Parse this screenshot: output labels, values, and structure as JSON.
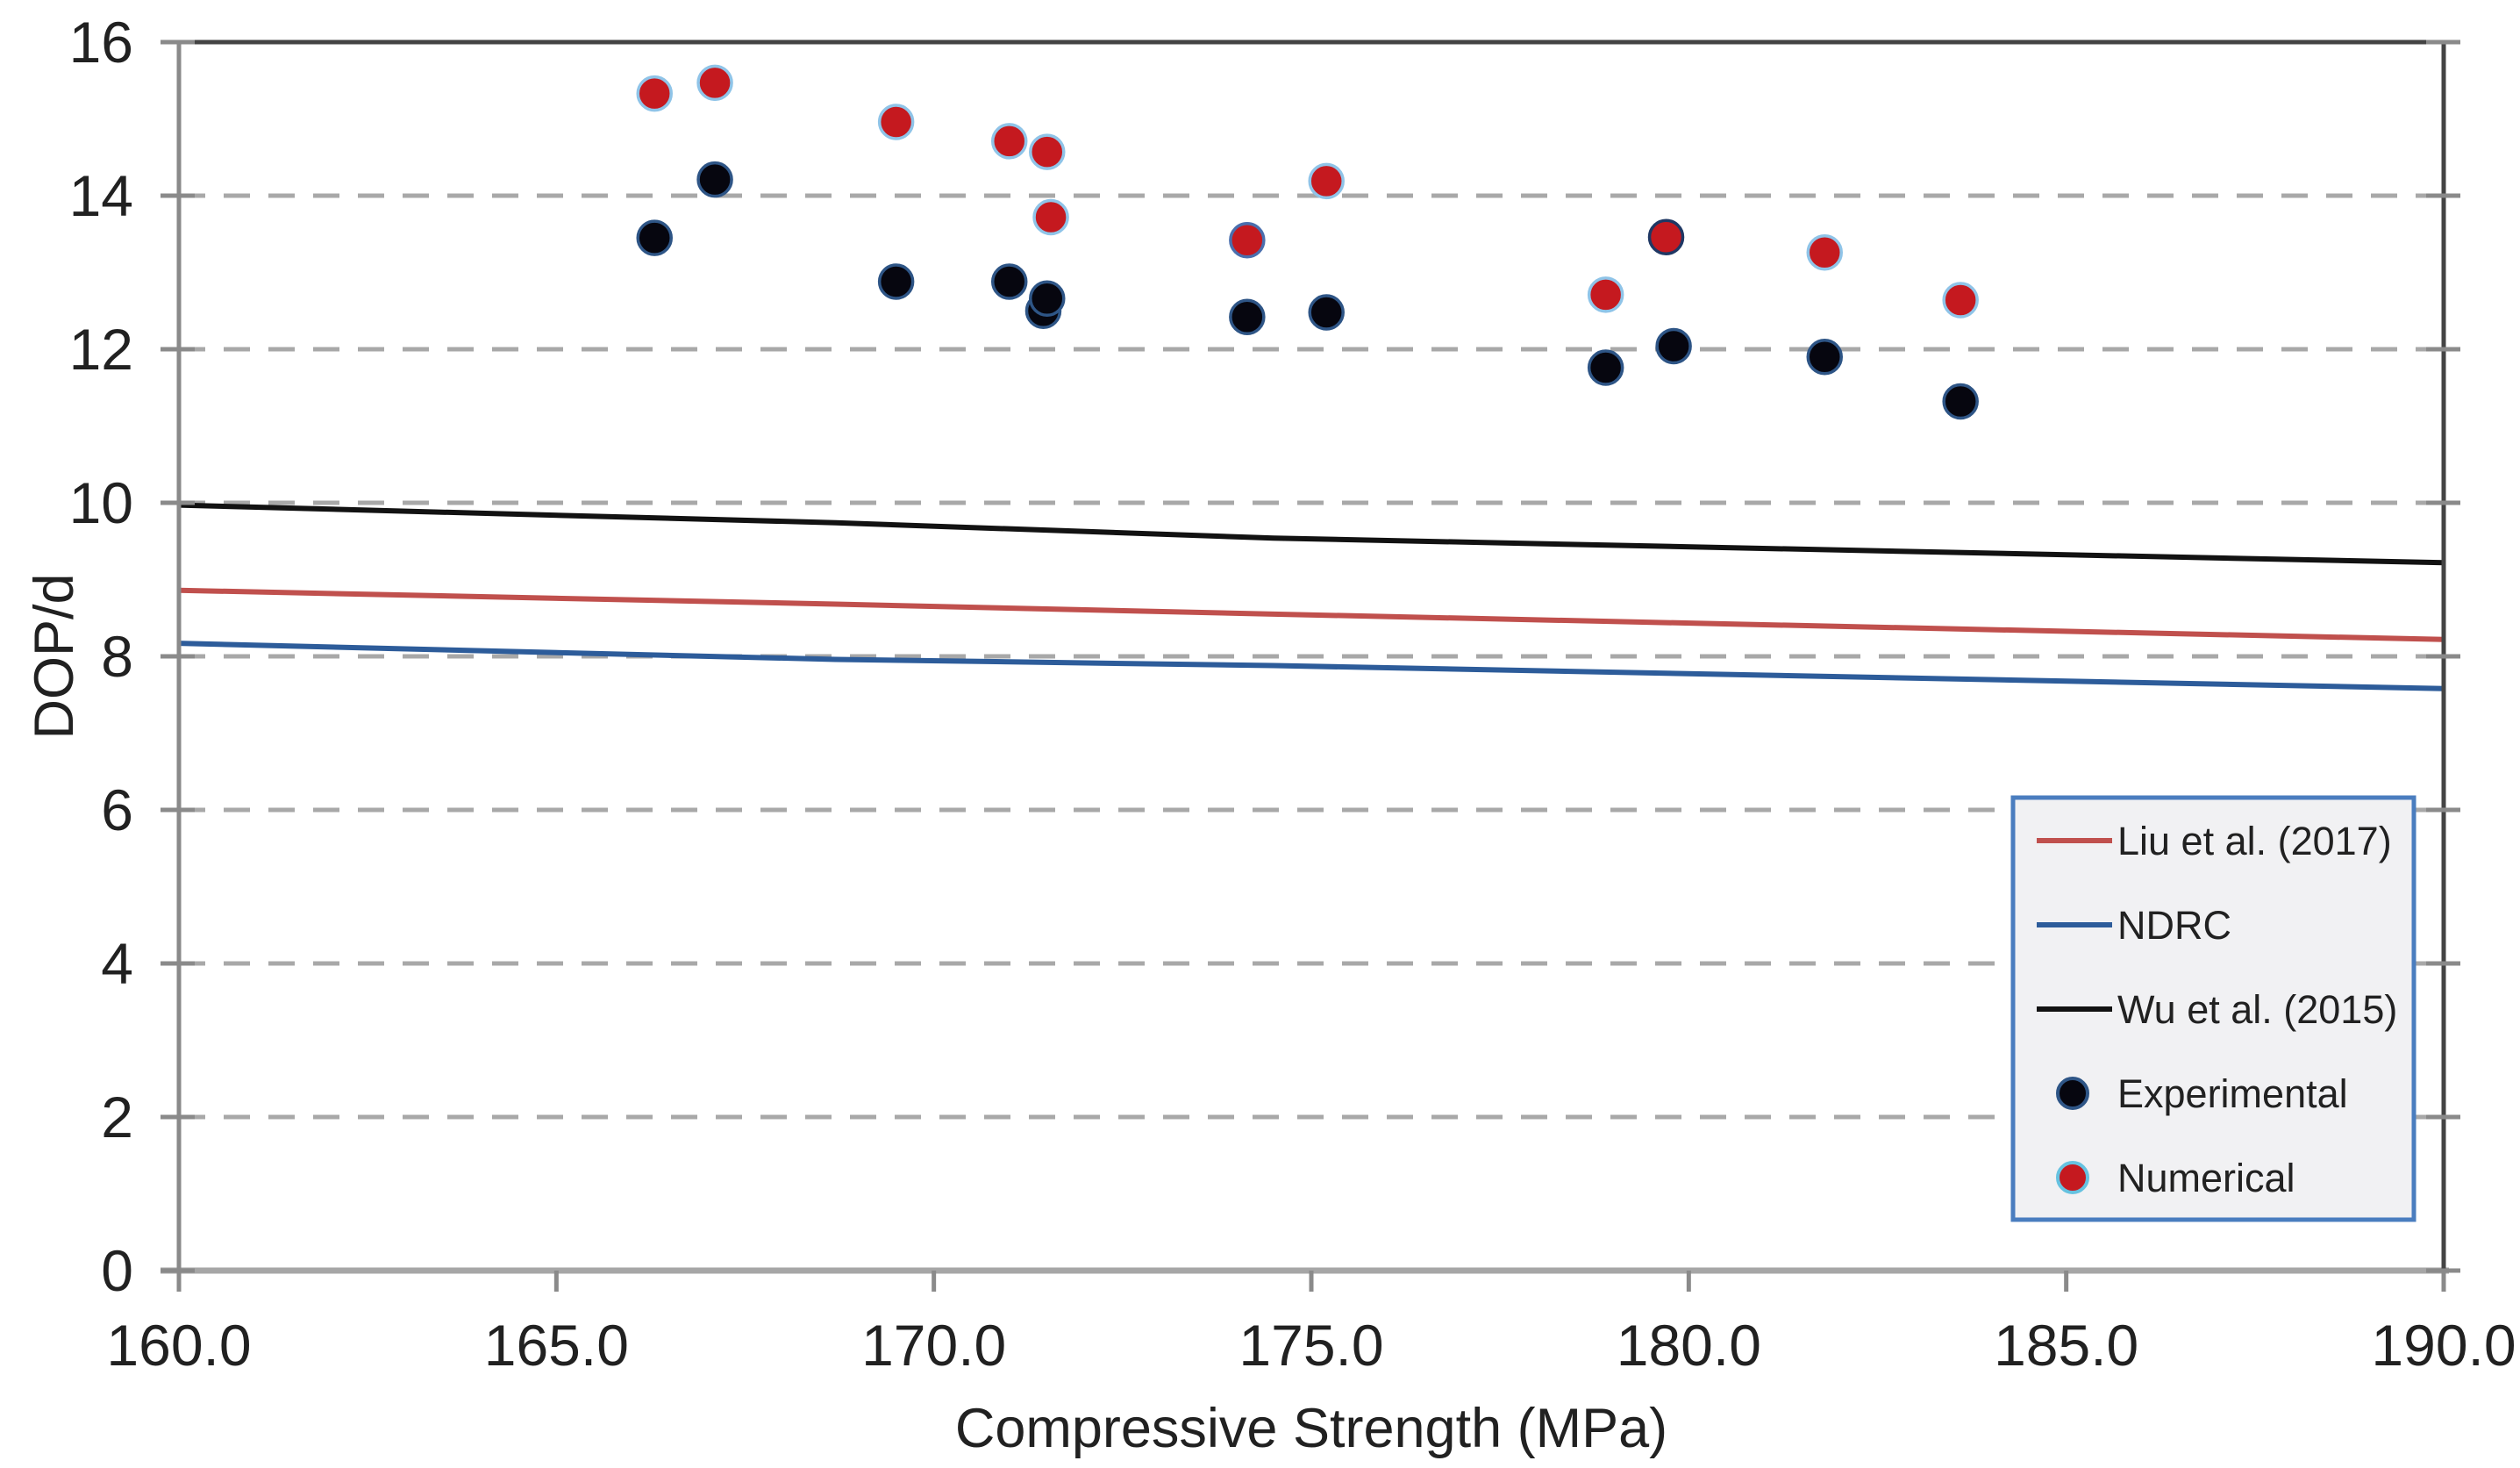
{
  "chart_data": {
    "type": "scatter",
    "title": "",
    "xlabel": "Compressive Strength (MPa)",
    "ylabel": "DOP/d",
    "xlim": [
      160.0,
      190.0
    ],
    "ylim": [
      0,
      16
    ],
    "x_tick_labels": [
      "160.0",
      "165.0",
      "170.0",
      "175.0",
      "180.0",
      "185.0",
      "190.0"
    ],
    "y_tick_labels": [
      "0",
      "2",
      "4",
      "6",
      "8",
      "10",
      "12",
      "14",
      "16"
    ],
    "grid": "horizontal dashed gridlines at every 2 units of DOP/d",
    "legend_position": "inside right",
    "line_series": [
      {
        "name": "Liu et al. (2017)",
        "color": "#C0504D",
        "x": [
          160,
          168.7,
          174.5,
          190
        ],
        "y": [
          8.86,
          8.68,
          8.55,
          8.22
        ]
      },
      {
        "name": "NDRC",
        "color": "#2D5C9A",
        "x": [
          160,
          168.7,
          174.5,
          190
        ],
        "y": [
          8.17,
          7.96,
          7.88,
          7.58
        ]
      },
      {
        "name": "Wu et al. (2015)",
        "color": "#121212",
        "x": [
          160,
          168.7,
          174.5,
          190
        ],
        "y": [
          9.97,
          9.74,
          9.54,
          9.22
        ]
      }
    ],
    "scatter_series": [
      {
        "name": "Experimental",
        "fill": "#06060f",
        "stroke": "#2E5586",
        "points": [
          [
            166.3,
            13.45
          ],
          [
            167.1,
            14.21
          ],
          [
            169.5,
            12.88
          ],
          [
            171.0,
            12.88
          ],
          [
            171.45,
            12.5
          ],
          [
            171.5,
            12.66
          ],
          [
            174.15,
            12.42
          ],
          [
            175.2,
            12.48
          ],
          [
            178.9,
            11.76
          ],
          [
            179.8,
            12.04
          ],
          [
            181.8,
            11.9
          ],
          [
            183.6,
            11.32
          ]
        ]
      },
      {
        "name": "Numerical",
        "fill": "#C5191F",
        "stroke": "#8FC4E8",
        "points": [
          [
            166.3,
            15.33
          ],
          [
            167.1,
            15.47
          ],
          [
            169.5,
            14.96
          ],
          [
            171.0,
            14.71
          ],
          [
            171.5,
            14.57
          ],
          [
            171.55,
            13.72
          ],
          [
            174.15,
            13.42,
            "#4A6FAE"
          ],
          [
            175.2,
            14.19
          ],
          [
            178.9,
            12.71
          ],
          [
            179.7,
            13.46,
            "#1F3864"
          ],
          [
            181.8,
            13.26
          ],
          [
            183.6,
            12.64
          ]
        ]
      }
    ]
  },
  "legend": {
    "items": [
      {
        "label": "Liu et al. (2017)",
        "marker": "line",
        "color": "#C0504D"
      },
      {
        "label": "NDRC",
        "marker": "line",
        "color": "#2D5C9A"
      },
      {
        "label": "Wu et al. (2015)",
        "marker": "line",
        "color": "#121212"
      },
      {
        "label": "Experimental",
        "marker": "dot",
        "fill": "#06060f",
        "stroke": "#2E5586"
      },
      {
        "label": "Numerical",
        "marker": "dot",
        "fill": "#C5191F",
        "stroke": "#66C2E0"
      }
    ],
    "border_color": "#4A7DBF",
    "background": "#F1F1F3"
  },
  "style": {
    "background": "#FFFFFF",
    "grid_color": "#A8A8A8",
    "axis_color": "#8A8A8A",
    "bottom_axis_color": "#A6A6A6",
    "plot_border_color": "#444444",
    "tick_color": "#8A8A8A",
    "text_color": "#212121"
  }
}
